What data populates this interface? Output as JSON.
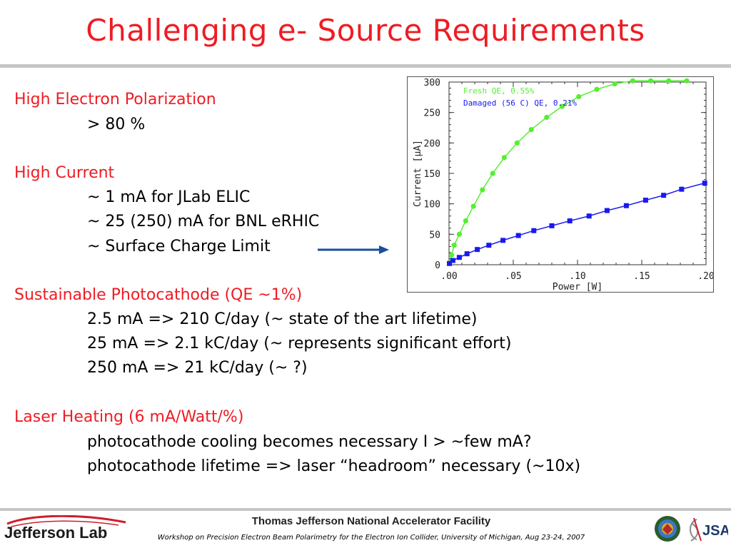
{
  "slide": {
    "title": "Challenging e- Source Requirements"
  },
  "content": {
    "lines": [
      {
        "text": "High Electron Polarization",
        "style": "heading"
      },
      {
        "text": "> 80 %",
        "style": "indent"
      },
      {
        "text": "High Current",
        "style": "heading"
      },
      {
        "text": "~ 1 mA for JLab ELIC",
        "style": "indent"
      },
      {
        "text": "~ 25 (250) mA for BNL eRHIC",
        "style": "indent"
      },
      {
        "text": "~ Surface Charge Limit",
        "style": "indent"
      },
      {
        "text": "Sustainable Photocathode (QE ~1%)",
        "style": "heading"
      },
      {
        "text": "2.5 mA => 210 C/day (~ state of the art lifetime)",
        "style": "indent"
      },
      {
        "text": "25  mA => 2.1 kC/day (~ represents significant effort)",
        "style": "indent"
      },
      {
        "text": "250 mA => 21 kC/day (~ ?)",
        "style": "indent"
      },
      {
        "text": "Laser Heating (6 mA/Watt/%)",
        "style": "heading"
      },
      {
        "text": "photocathode cooling becomes necessary I > ~few mA?",
        "style": "indent"
      },
      {
        "text": "photocathode lifetime => laser “headroom” necessary (~10x)",
        "style": "indent"
      }
    ]
  },
  "chart_data": {
    "type": "line",
    "xlabel": "Power  [W]",
    "ylabel": "Current  [μA]",
    "xlim": [
      0,
      0.2
    ],
    "ylim": [
      0,
      300
    ],
    "x_ticks": [
      ".00",
      ".05",
      ".10",
      ".15",
      ".20"
    ],
    "y_ticks": [
      "0",
      "50",
      "100",
      "150",
      "200",
      "250",
      "300"
    ],
    "series": [
      {
        "name": "Fresh QE, 0.55%",
        "color": "#55ee33",
        "marker": "circle",
        "x": [
          0.0003,
          0.002,
          0.004,
          0.008,
          0.013,
          0.019,
          0.026,
          0.034,
          0.043,
          0.053,
          0.064,
          0.076,
          0.088,
          0.101,
          0.115,
          0.129,
          0.143,
          0.157,
          0.171,
          0.185
        ],
        "y": [
          3,
          16,
          32,
          50,
          72,
          96,
          123,
          150,
          176,
          200,
          222,
          242,
          260,
          276,
          288,
          297,
          303,
          307,
          308,
          308
        ]
      },
      {
        "name": "Damaged (56 C) QE, 0.21%",
        "color": "#1a1aee",
        "marker": "square",
        "x": [
          0.0003,
          0.003,
          0.008,
          0.014,
          0.022,
          0.031,
          0.042,
          0.054,
          0.066,
          0.08,
          0.094,
          0.109,
          0.123,
          0.138,
          0.153,
          0.167,
          0.181,
          0.199
        ],
        "y": [
          2,
          7,
          12,
          18,
          25,
          32,
          40,
          48,
          56,
          64,
          72,
          80,
          89,
          97,
          106,
          114,
          124,
          134
        ]
      }
    ]
  },
  "footer": {
    "org_name": "Thomas Jefferson National Accelerator Facility",
    "workshop": "Workshop on Precision Electron Beam Polarimetry for the Electron Ion Collider, University of Michigan, Aug 23-24, 2007",
    "logo_left": "Jefferson Lab",
    "logo_right": "JSA"
  },
  "colors": {
    "title": "#ee1c24",
    "heading": "#ee1c24",
    "arrow": "#1a4ea0",
    "rule": "#c6c6c6"
  }
}
